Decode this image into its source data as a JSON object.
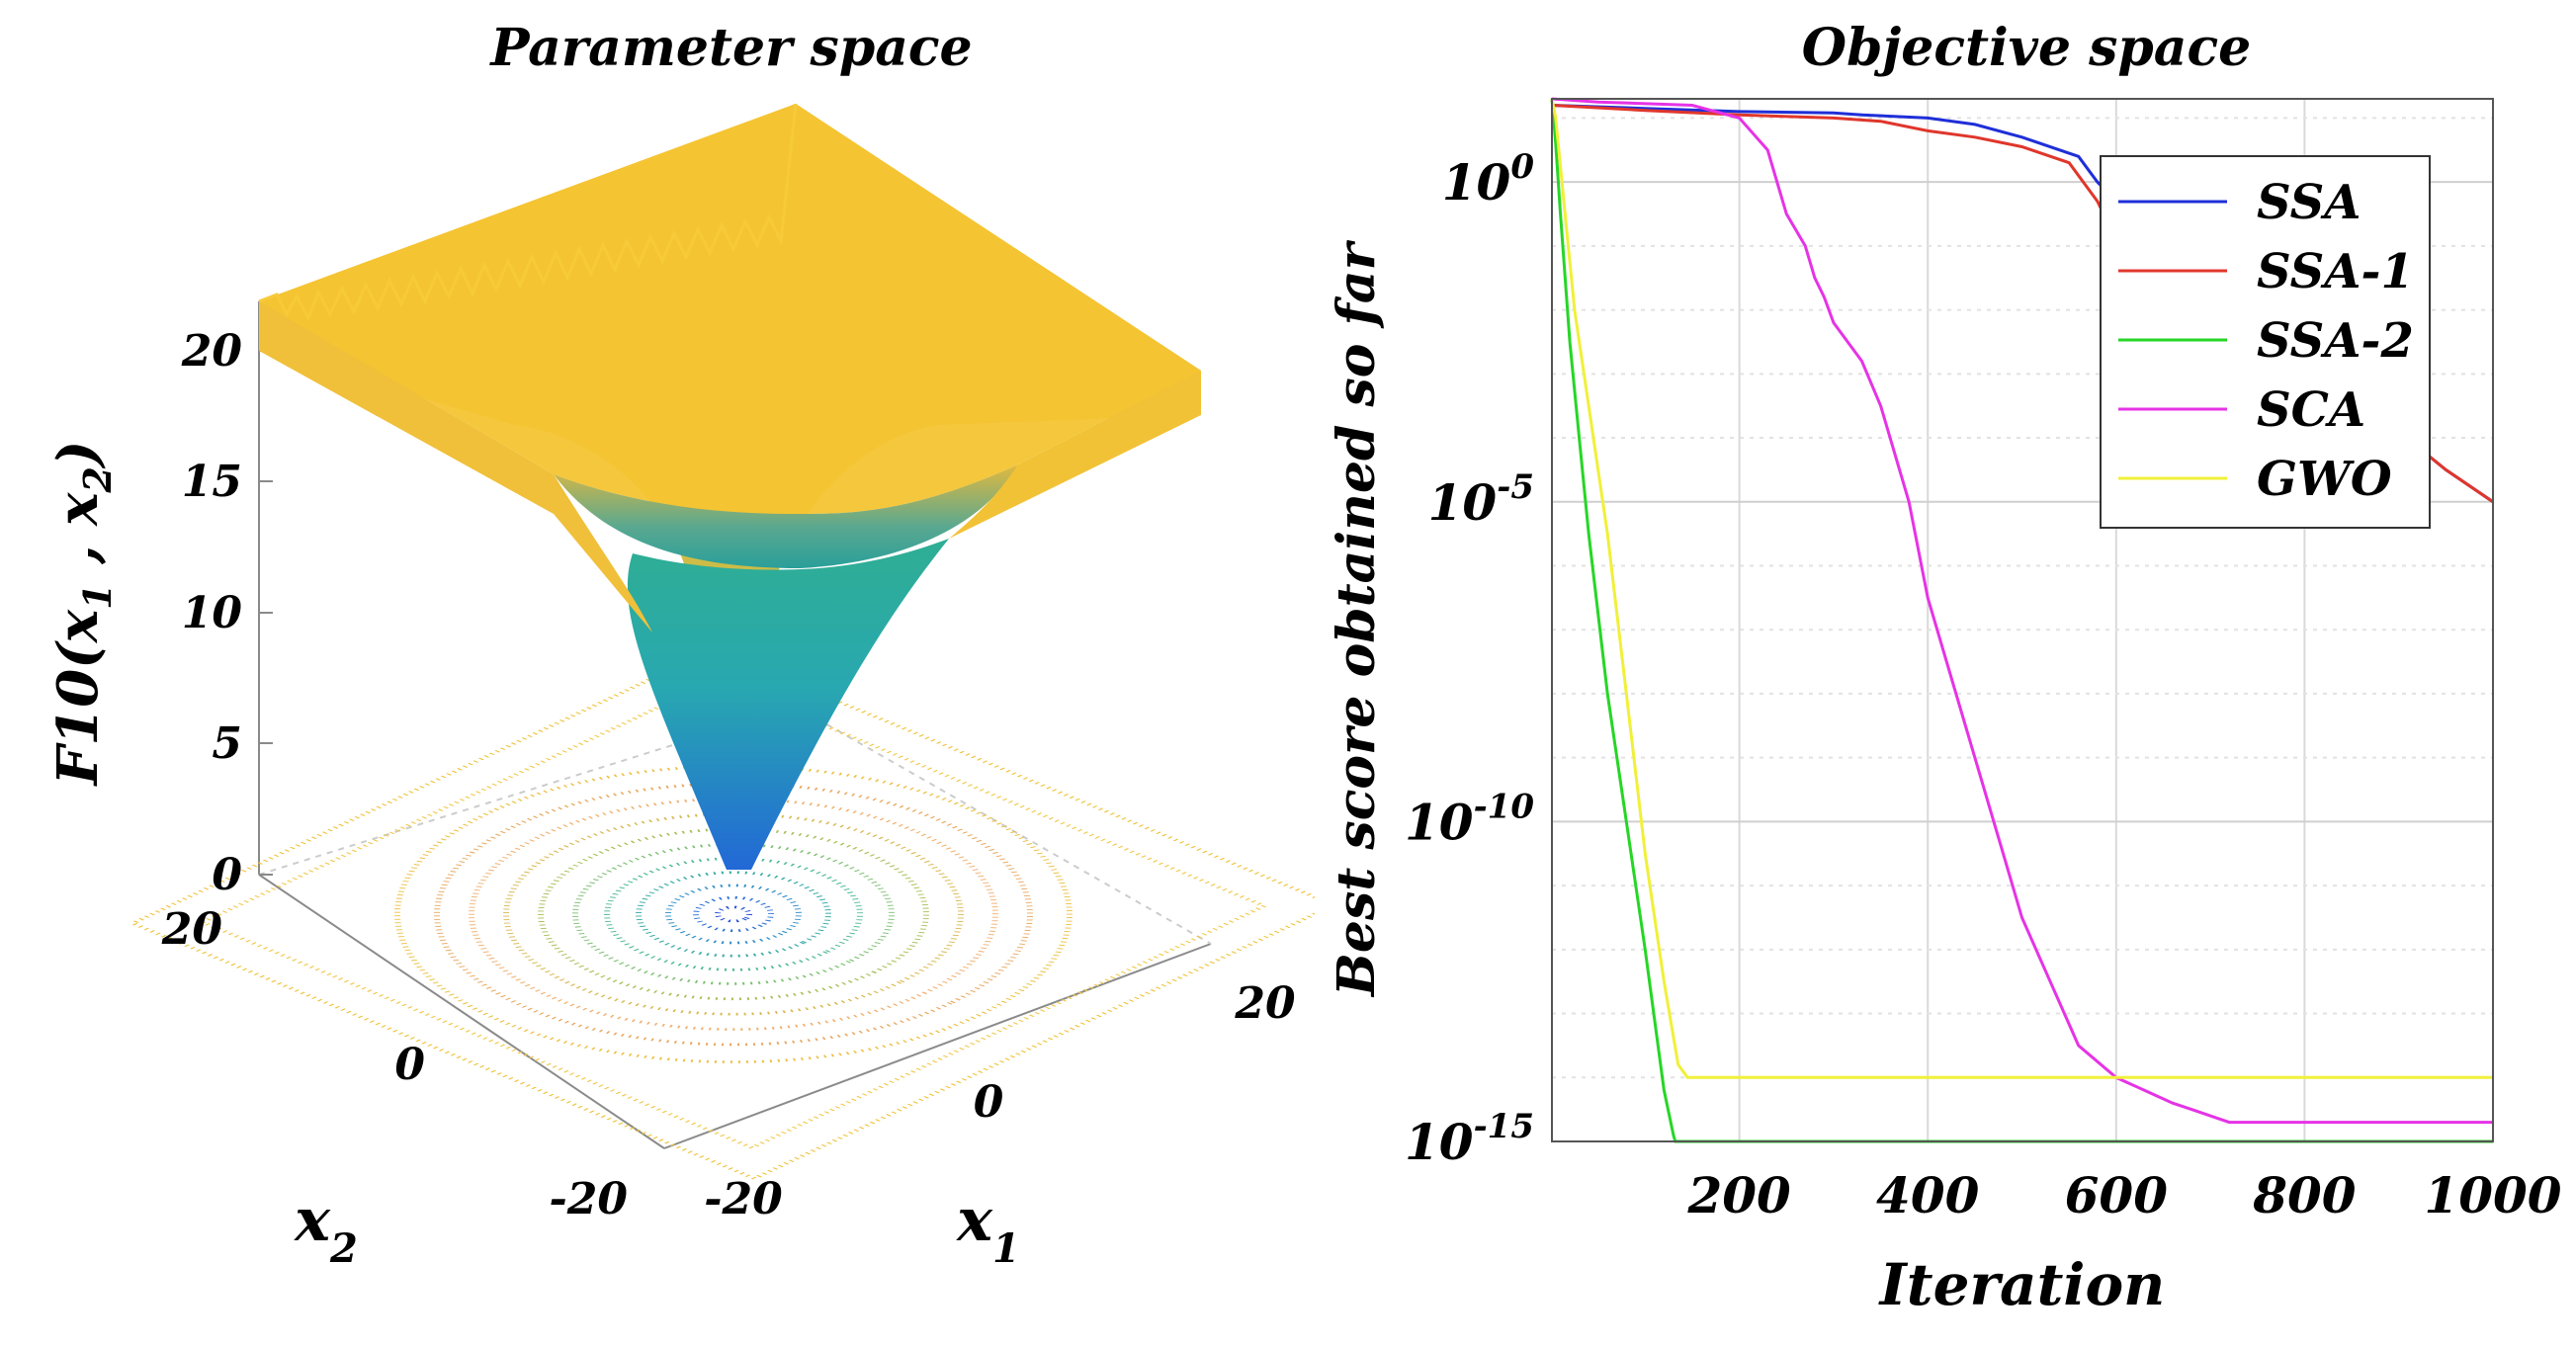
{
  "chart_data": [
    {
      "type": "surface3d",
      "title": "Parameter space",
      "zlabel_main": "F10(",
      "zlabel_sub1": "1",
      "zlabel_sub2": "2",
      "xlabel_main": "x",
      "xlabel_sub": "1",
      "ylabel_main": "x",
      "ylabel_sub": "2",
      "z_ticks": [
        "0",
        "5",
        "10",
        "15",
        "20"
      ],
      "x_ticks": [
        "-20",
        "0",
        "20"
      ],
      "y_ticks": [
        "-20",
        "0",
        "20"
      ],
      "x_range": [
        -20,
        20
      ],
      "y_range": [
        -20,
        20
      ],
      "z_range": [
        0,
        22
      ],
      "colors": {
        "low": "#2a6fd6",
        "mid": "#2ab59c",
        "high": "#f5c22e"
      }
    },
    {
      "type": "line",
      "title": "Objective space",
      "xlabel": "Iteration",
      "ylabel": "Best score obtained so far",
      "xlim": [
        1,
        1000
      ],
      "ylim_log10": [
        -15,
        1.3
      ],
      "y_scale": "log",
      "x_ticks": [
        "200",
        "400",
        "600",
        "800",
        "1000"
      ],
      "y_tick_base": "10",
      "y_tick_exps": [
        "0",
        "-5",
        "-10",
        "-15"
      ],
      "legend_position": "top-right",
      "series": [
        {
          "name": "SSA",
          "color": "#1f2fd8",
          "x": [
            1,
            100,
            200,
            300,
            330,
            400,
            450,
            500,
            560,
            570,
            580,
            600,
            620,
            650,
            700,
            750,
            800,
            850,
            900,
            950,
            1000
          ],
          "log10_y": [
            1.2,
            1.15,
            1.1,
            1.08,
            1.05,
            1.0,
            0.9,
            0.7,
            0.4,
            0.2,
            0.0,
            -0.3,
            -0.6,
            -1.0,
            -1.6,
            -2.2,
            -2.8,
            -3.3,
            -3.9,
            -4.5,
            -5.0
          ]
        },
        {
          "name": "SSA-1",
          "color": "#e0362b",
          "x": [
            1,
            100,
            200,
            300,
            350,
            400,
            450,
            500,
            550,
            580,
            590,
            600,
            650,
            700,
            750,
            800,
            850,
            900,
            950,
            1000
          ],
          "log10_y": [
            1.2,
            1.12,
            1.05,
            1.0,
            0.95,
            0.8,
            0.7,
            0.55,
            0.3,
            -0.3,
            -0.6,
            -0.9,
            -1.3,
            -1.7,
            -2.3,
            -2.8,
            -3.3,
            -3.9,
            -4.5,
            -5.0
          ]
        },
        {
          "name": "SSA-2",
          "color": "#26d626",
          "x": [
            1,
            5,
            10,
            20,
            30,
            40,
            60,
            80,
            100,
            120,
            130,
            132,
            140,
            200,
            400,
            600,
            800,
            1000
          ],
          "log10_y": [
            1.3,
            0.6,
            -0.5,
            -2.5,
            -4.0,
            -5.5,
            -8.0,
            -10.0,
            -12.0,
            -14.2,
            -14.9,
            -15.0,
            -15.0,
            -15.0,
            -15.0,
            -15.0,
            -15.0,
            -15.0
          ]
        },
        {
          "name": "SCA",
          "color": "#e633e6",
          "x": [
            1,
            50,
            150,
            200,
            230,
            250,
            270,
            280,
            290,
            300,
            330,
            350,
            380,
            400,
            430,
            450,
            480,
            500,
            530,
            560,
            600,
            630,
            660,
            680,
            700,
            710,
            720,
            800,
            900,
            1000
          ],
          "log10_y": [
            1.3,
            1.25,
            1.2,
            1.0,
            0.5,
            -0.5,
            -1.0,
            -1.5,
            -1.8,
            -2.2,
            -2.8,
            -3.5,
            -5.0,
            -6.5,
            -8.0,
            -9.0,
            -10.5,
            -11.5,
            -12.5,
            -13.5,
            -14.0,
            -14.2,
            -14.4,
            -14.5,
            -14.6,
            -14.65,
            -14.7,
            -14.7,
            -14.7,
            -14.7
          ]
        },
        {
          "name": "GWO",
          "color": "#f0f03a",
          "x": [
            1,
            5,
            15,
            25,
            40,
            60,
            80,
            100,
            120,
            135,
            145,
            300,
            600,
            1000
          ],
          "log10_y": [
            1.3,
            1.0,
            -0.5,
            -2.0,
            -3.5,
            -5.5,
            -8.0,
            -10.5,
            -12.5,
            -13.8,
            -14.0,
            -14.0,
            -14.0,
            -14.0
          ]
        }
      ]
    }
  ]
}
